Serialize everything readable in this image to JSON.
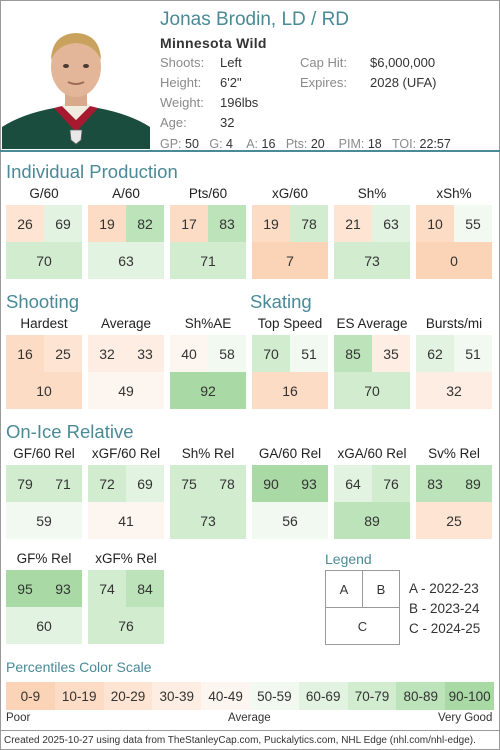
{
  "player": {
    "name": "Jonas Brodin, LD / RD",
    "team": "Minnesota Wild",
    "fields": [
      {
        "label": "Shoots:",
        "value": "Left"
      },
      {
        "label": "Cap Hit:",
        "value": "$6,000,000"
      },
      {
        "label": "Height:",
        "value": "6'2\""
      },
      {
        "label": "Expires:",
        "value": "2028 (UFA)"
      },
      {
        "label": "Weight:",
        "value": "196lbs"
      },
      {
        "label": "Age:",
        "value": "32"
      }
    ],
    "gp": {
      "gp_label": "GP:",
      "gp": "50",
      "g_label": "G:",
      "g": "4",
      "a_label": "A:",
      "a": "16",
      "pts_label": "Pts:",
      "pts": "20",
      "pim_label": "PIM:",
      "pim": "18",
      "toi_label": "TOI:",
      "toi": "22:57"
    }
  },
  "sections": {
    "individual": "Individual Production",
    "shooting": "Shooting",
    "skating": "Skating",
    "onice": "On-Ice Relative"
  },
  "stats": [
    {
      "title": "G/60",
      "a": 26,
      "b": 69,
      "c": 70
    },
    {
      "title": "A/60",
      "a": 19,
      "b": 82,
      "c": 63
    },
    {
      "title": "Pts/60",
      "a": 17,
      "b": 83,
      "c": 71
    },
    {
      "title": "xG/60",
      "a": 19,
      "b": 78,
      "c": 7
    },
    {
      "title": "Sh%",
      "a": 21,
      "b": 63,
      "c": 73
    },
    {
      "title": "xSh%",
      "a": 10,
      "b": 55,
      "c": 0
    },
    {
      "title": "Hardest",
      "a": 16,
      "b": 25,
      "c": 10
    },
    {
      "title": "Average",
      "a": 32,
      "b": 33,
      "c": 49
    },
    {
      "title": "Sh%AE",
      "a": 40,
      "b": 58,
      "c": 92
    },
    {
      "title": "Top Speed",
      "a": 70,
      "b": 51,
      "c": 16
    },
    {
      "title": "ES Average",
      "a": 85,
      "b": 35,
      "c": 70
    },
    {
      "title": "Bursts/mi",
      "a": 62,
      "b": 51,
      "c": 32
    },
    {
      "title": "GF/60 Rel",
      "a": 79,
      "b": 71,
      "c": 59
    },
    {
      "title": "xGF/60 Rel",
      "a": 72,
      "b": 69,
      "c": 41
    },
    {
      "title": "Sh% Rel",
      "a": 75,
      "b": 78,
      "c": 73
    },
    {
      "title": "GA/60 Rel",
      "a": 90,
      "b": 93,
      "c": 56
    },
    {
      "title": "xGA/60 Rel",
      "a": 64,
      "b": 76,
      "c": 89
    },
    {
      "title": "Sv% Rel",
      "a": 83,
      "b": 89,
      "c": 25
    },
    {
      "title": "GF% Rel",
      "a": 95,
      "b": 93,
      "c": 60
    },
    {
      "title": "xGF% Rel",
      "a": 74,
      "b": 84,
      "c": 76
    }
  ],
  "legend": {
    "title": "Legend",
    "a": "A",
    "b": "B",
    "c": "C",
    "items": [
      "A - 2022-23",
      "B - 2023-24",
      "C - 2024-25"
    ]
  },
  "scale": {
    "title": "Percentiles Color Scale",
    "bins": [
      {
        "label": "0-9",
        "color": "#fbd3b6"
      },
      {
        "label": "10-19",
        "color": "#fcdcc4"
      },
      {
        "label": "20-29",
        "color": "#fde4d3"
      },
      {
        "label": "30-39",
        "color": "#fdede2"
      },
      {
        "label": "40-49",
        "color": "#fdf5ef"
      },
      {
        "label": "50-59",
        "color": "#f2f9f1"
      },
      {
        "label": "60-69",
        "color": "#e3f3e1"
      },
      {
        "label": "70-79",
        "color": "#d2ecd0"
      },
      {
        "label": "80-89",
        "color": "#bde3ba"
      },
      {
        "label": "90-100",
        "color": "#a9daa5"
      }
    ],
    "poor": "Poor",
    "average": "Average",
    "very_good": "Very Good"
  },
  "footer": "Created 2025-10-27 using data from TheStanleyCap.com, Puckalytics.com, NHL Edge (nhl.com/nhl-edge).",
  "colors": {
    "accent": "#4a8a97",
    "jersey": "#1b4d3e"
  }
}
